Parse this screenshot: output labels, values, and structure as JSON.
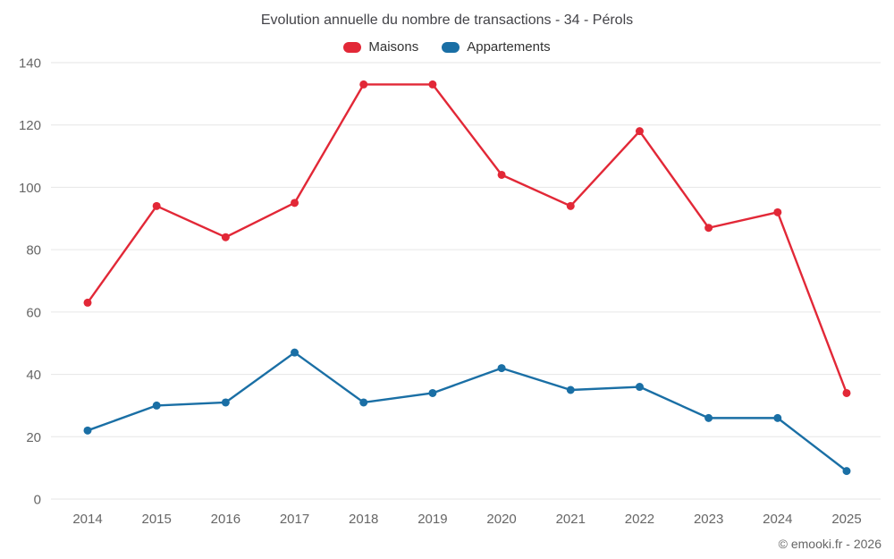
{
  "title": "Evolution annuelle du nombre de transactions - 34 - Pérols",
  "credit": "© emooki.fr - 2026",
  "chart_data": {
    "type": "line",
    "categories": [
      "2014",
      "2015",
      "2016",
      "2017",
      "2018",
      "2019",
      "2020",
      "2021",
      "2022",
      "2023",
      "2024",
      "2025"
    ],
    "series": [
      {
        "name": "Maisons",
        "color": "#e22837",
        "values": [
          63,
          94,
          84,
          95,
          133,
          133,
          104,
          94,
          118,
          87,
          92,
          34
        ]
      },
      {
        "name": "Appartements",
        "color": "#1a6fa5",
        "values": [
          22,
          30,
          31,
          47,
          31,
          34,
          42,
          35,
          36,
          26,
          26,
          9
        ]
      }
    ],
    "ylim": [
      0,
      140
    ],
    "ytick_step": 20,
    "grid": "horizontal",
    "grid_color": "#e6e6e6",
    "axis_label_color": "#666666",
    "legend_position": "top",
    "xlabel": "",
    "ylabel": ""
  }
}
